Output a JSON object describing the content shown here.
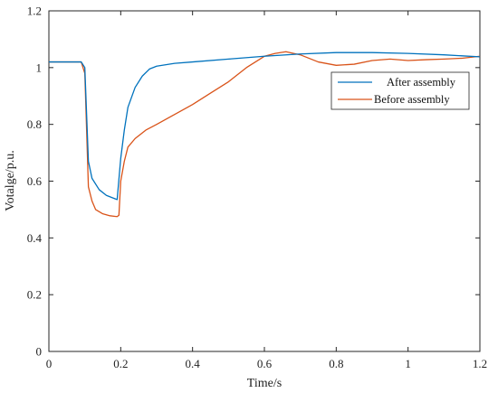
{
  "chart_data": {
    "type": "line",
    "xlabel": "Time/s",
    "ylabel": "Votalge/p.u.",
    "xlim": [
      0,
      1.2
    ],
    "ylim": [
      0,
      1.2
    ],
    "x_ticks": [
      "0",
      "0.2",
      "0.4",
      "0.6",
      "0.8",
      "1",
      "1.2"
    ],
    "y_ticks": [
      "0",
      "0.2",
      "0.4",
      "0.6",
      "0.8",
      "1",
      "1.2"
    ],
    "grid": false,
    "legend_position": "right",
    "series": [
      {
        "name": "After assembly",
        "color": "#0072BD",
        "x": [
          0,
          0.09,
          0.1,
          0.11,
          0.12,
          0.14,
          0.16,
          0.18,
          0.19,
          0.2,
          0.21,
          0.22,
          0.24,
          0.26,
          0.28,
          0.3,
          0.35,
          0.4,
          0.5,
          0.6,
          0.7,
          0.8,
          0.9,
          1.0,
          1.1,
          1.2
        ],
        "y": [
          1.02,
          1.02,
          1.0,
          0.67,
          0.61,
          0.57,
          0.55,
          0.54,
          0.535,
          0.68,
          0.78,
          0.86,
          0.93,
          0.97,
          0.995,
          1.005,
          1.015,
          1.02,
          1.03,
          1.04,
          1.048,
          1.053,
          1.053,
          1.05,
          1.045,
          1.038
        ]
      },
      {
        "name": "Before assembly",
        "color": "#D95319",
        "x": [
          0,
          0.09,
          0.1,
          0.11,
          0.12,
          0.13,
          0.15,
          0.17,
          0.19,
          0.195,
          0.2,
          0.21,
          0.22,
          0.24,
          0.27,
          0.3,
          0.35,
          0.4,
          0.45,
          0.5,
          0.55,
          0.6,
          0.63,
          0.66,
          0.7,
          0.75,
          0.8,
          0.85,
          0.9,
          0.95,
          1.0,
          1.05,
          1.1,
          1.15,
          1.2
        ],
        "y": [
          1.02,
          1.02,
          0.98,
          0.58,
          0.53,
          0.5,
          0.485,
          0.478,
          0.475,
          0.48,
          0.6,
          0.67,
          0.72,
          0.75,
          0.78,
          0.8,
          0.835,
          0.87,
          0.91,
          0.95,
          1.0,
          1.04,
          1.05,
          1.056,
          1.045,
          1.02,
          1.008,
          1.012,
          1.025,
          1.03,
          1.025,
          1.028,
          1.03,
          1.033,
          1.04
        ]
      }
    ]
  }
}
